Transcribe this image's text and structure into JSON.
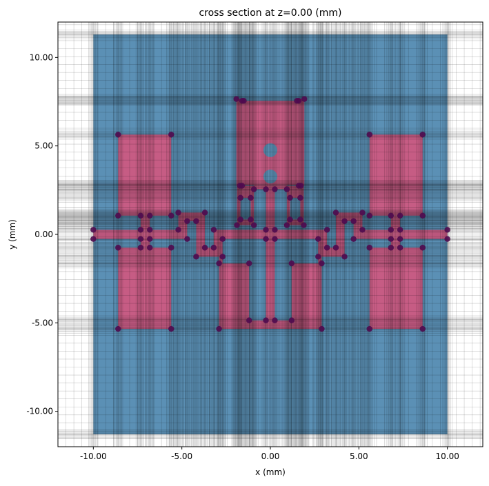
{
  "chart_data": {
    "type": "scatter",
    "title": "cross section at z=0.00 (mm)",
    "xlabel": "x (mm)",
    "ylabel": "y (mm)",
    "xlim": [
      -12,
      12
    ],
    "ylim": [
      -12,
      12
    ],
    "x_ticks": [
      "-10.00",
      "-5.00",
      "0.00",
      "5.00",
      "10.00"
    ],
    "x_tick_values": [
      -10,
      -5,
      0,
      5,
      10
    ],
    "y_ticks": [
      "-10.00",
      "-5.00",
      "0.00",
      "5.00",
      "10.00"
    ],
    "y_tick_values": [
      -10,
      -5,
      0,
      5,
      10
    ],
    "grid": "nonuniform simulation mesh",
    "colors": {
      "substrate": "#5b90b5",
      "metal": "#c65c84",
      "markers": "#4f0a4f",
      "mesh": "#000000"
    },
    "substrate": [
      -10,
      10,
      -11.3,
      11.3
    ],
    "metal_rects": [
      [
        -10,
        -5.2,
        -0.26,
        0.26
      ],
      [
        -8.6,
        -5.6,
        1.06,
        5.64
      ],
      [
        -8.6,
        -5.6,
        -5.34,
        -0.75
      ],
      [
        -7.33,
        -6.81,
        -0.75,
        1.06
      ],
      [
        -5.2,
        -4.7,
        -0.26,
        1.23
      ],
      [
        -5.2,
        -3.7,
        0.75,
        1.23
      ],
      [
        -4.19,
        -3.7,
        -1.26,
        1.23
      ],
      [
        -4.19,
        -2.7,
        -1.26,
        -0.75
      ],
      [
        -3.2,
        -2.7,
        -1.26,
        0.26
      ],
      [
        -3.2,
        3.2,
        -0.26,
        0.26
      ],
      [
        -2.9,
        -2.7,
        -1.64,
        -1.26
      ],
      [
        -2.9,
        -1.2,
        -5.34,
        -1.64
      ],
      [
        -1.2,
        1.2,
        -5.34,
        -4.86
      ],
      [
        -0.25,
        0.25,
        -4.86,
        2.55
      ],
      [
        -1.6,
        1.6,
        2.8,
        7.55
      ],
      [
        -0.93,
        0.93,
        2.55,
        2.8
      ],
      [
        -1.92,
        -1.6,
        2.75,
        7.65
      ],
      [
        -1.89,
        -1.69,
        0.52,
        2.75
      ],
      [
        -1.11,
        -0.93,
        0.52,
        2.75
      ],
      [
        -1.89,
        -0.93,
        2.07,
        2.75
      ],
      [
        -1.89,
        -0.93,
        0.52,
        0.84
      ],
      [
        5.2,
        10,
        -0.26,
        0.26
      ],
      [
        5.6,
        8.6,
        1.06,
        5.64
      ],
      [
        5.6,
        8.6,
        -5.34,
        -0.75
      ],
      [
        6.81,
        7.33,
        -0.75,
        1.06
      ],
      [
        4.7,
        5.2,
        -0.26,
        1.23
      ],
      [
        3.7,
        5.2,
        0.75,
        1.23
      ],
      [
        3.7,
        4.19,
        -1.26,
        1.23
      ],
      [
        2.7,
        4.19,
        -1.26,
        -0.75
      ],
      [
        2.7,
        3.2,
        -1.26,
        0.26
      ],
      [
        2.7,
        2.9,
        -1.64,
        -1.26
      ],
      [
        1.2,
        2.9,
        -5.34,
        -1.64
      ],
      [
        1.6,
        1.92,
        2.75,
        7.65
      ],
      [
        1.69,
        1.89,
        0.52,
        2.75
      ],
      [
        0.93,
        1.11,
        0.52,
        2.75
      ],
      [
        0.93,
        1.89,
        2.07,
        2.75
      ],
      [
        0.93,
        1.89,
        0.52,
        0.84
      ]
    ],
    "holes": [
      [
        0,
        4.76,
        0.39
      ],
      [
        0,
        3.27,
        0.39
      ]
    ],
    "points": [
      [
        -10,
        0.26
      ],
      [
        -10,
        -0.26
      ],
      [
        -8.6,
        5.64
      ],
      [
        -5.6,
        5.64
      ],
      [
        -8.6,
        1.06
      ],
      [
        -5.6,
        1.06
      ],
      [
        -7.33,
        1.06
      ],
      [
        -6.81,
        1.06
      ],
      [
        -7.33,
        0.26
      ],
      [
        -6.81,
        0.26
      ],
      [
        -7.33,
        -0.26
      ],
      [
        -6.81,
        -0.26
      ],
      [
        -8.6,
        -0.75
      ],
      [
        -5.6,
        -0.75
      ],
      [
        -7.33,
        -0.75
      ],
      [
        -6.81,
        -0.75
      ],
      [
        -8.6,
        -5.34
      ],
      [
        -5.6,
        -5.34
      ],
      [
        -5.2,
        1.23
      ],
      [
        -3.7,
        1.23
      ],
      [
        -4.7,
        0.75
      ],
      [
        -4.19,
        0.75
      ],
      [
        -5.2,
        0.26
      ],
      [
        -4.7,
        -0.26
      ],
      [
        -4.19,
        -1.26
      ],
      [
        -3.7,
        -0.75
      ],
      [
        -3.2,
        -0.75
      ],
      [
        -3.2,
        0.26
      ],
      [
        -2.7,
        -0.26
      ],
      [
        -2.7,
        -1.26
      ],
      [
        -2.9,
        -1.64
      ],
      [
        -1.2,
        -1.64
      ],
      [
        -2.9,
        -5.34
      ],
      [
        -1.2,
        -4.86
      ],
      [
        -0.25,
        -4.86
      ],
      [
        -0.25,
        0.26
      ],
      [
        -0.25,
        -0.26
      ],
      [
        -0.25,
        2.55
      ],
      [
        -0.93,
        2.55
      ],
      [
        -1.72,
        2.75
      ],
      [
        -1.6,
        2.75
      ],
      [
        -1.69,
        2.07
      ],
      [
        -1.11,
        2.07
      ],
      [
        -1.69,
        0.84
      ],
      [
        -1.11,
        0.84
      ],
      [
        -1.89,
        0.52
      ],
      [
        -0.93,
        0.52
      ],
      [
        -1.92,
        7.65
      ],
      [
        -1.6,
        7.55
      ],
      [
        -1.5,
        7.55
      ],
      [
        10,
        0.26
      ],
      [
        10,
        -0.26
      ],
      [
        8.6,
        5.64
      ],
      [
        5.6,
        5.64
      ],
      [
        8.6,
        1.06
      ],
      [
        5.6,
        1.06
      ],
      [
        7.33,
        1.06
      ],
      [
        6.81,
        1.06
      ],
      [
        7.33,
        0.26
      ],
      [
        6.81,
        0.26
      ],
      [
        7.33,
        -0.26
      ],
      [
        6.81,
        -0.26
      ],
      [
        8.6,
        -0.75
      ],
      [
        5.6,
        -0.75
      ],
      [
        7.33,
        -0.75
      ],
      [
        6.81,
        -0.75
      ],
      [
        8.6,
        -5.34
      ],
      [
        5.6,
        -5.34
      ],
      [
        5.2,
        1.23
      ],
      [
        3.7,
        1.23
      ],
      [
        4.7,
        0.75
      ],
      [
        4.19,
        0.75
      ],
      [
        5.2,
        0.26
      ],
      [
        4.7,
        -0.26
      ],
      [
        4.19,
        -1.26
      ],
      [
        3.7,
        -0.75
      ],
      [
        3.2,
        -0.75
      ],
      [
        3.2,
        0.26
      ],
      [
        2.7,
        -0.26
      ],
      [
        2.7,
        -1.26
      ],
      [
        2.9,
        -1.64
      ],
      [
        1.2,
        -1.64
      ],
      [
        2.9,
        -5.34
      ],
      [
        1.2,
        -4.86
      ],
      [
        0.25,
        -4.86
      ],
      [
        0.25,
        0.26
      ],
      [
        0.25,
        -0.26
      ],
      [
        0.25,
        2.55
      ],
      [
        0.93,
        2.55
      ],
      [
        1.72,
        2.75
      ],
      [
        1.6,
        2.75
      ],
      [
        1.69,
        2.07
      ],
      [
        1.11,
        2.07
      ],
      [
        1.69,
        0.84
      ],
      [
        1.11,
        0.84
      ],
      [
        1.89,
        0.52
      ],
      [
        0.93,
        0.52
      ],
      [
        1.92,
        7.65
      ],
      [
        1.6,
        7.55
      ],
      [
        1.5,
        7.55
      ]
    ]
  }
}
